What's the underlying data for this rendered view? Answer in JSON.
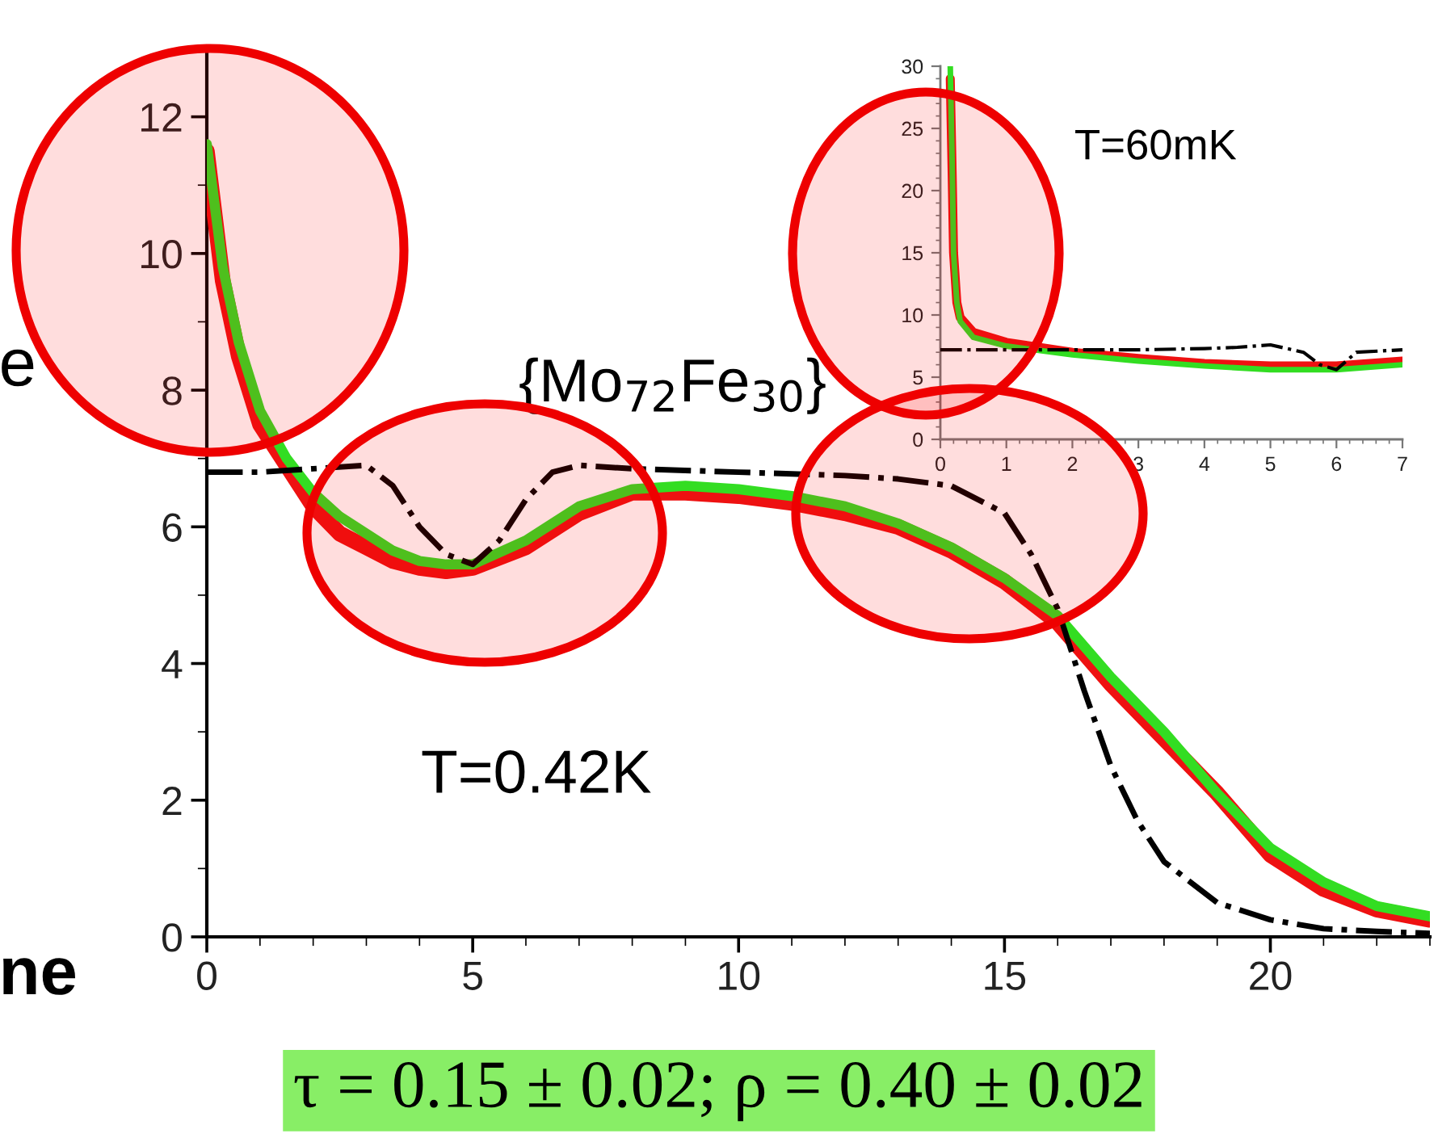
{
  "chart_data": [
    {
      "type": "line",
      "xlim": [
        0,
        23
      ],
      "ylim": [
        0,
        13
      ],
      "xticks": [
        0,
        5,
        10,
        15,
        20
      ],
      "yticks": [
        0,
        2,
        4,
        6,
        8,
        10,
        12
      ],
      "grid": false,
      "legend": false,
      "marker": "none",
      "annotations": [
        "{Mo$_{72}$Fe$_{30}$}",
        "T=0.42K",
        "τ = 0.15 ± 0.02; ρ = 0.40 ± 0.02",
        "e",
        "ne"
      ],
      "series": [
        {
          "color": "#ee1111",
          "line_style": "solid",
          "x": [
            0,
            0.3,
            0.6,
            1,
            1.5,
            2,
            2.5,
            3,
            3.5,
            4,
            4.5,
            5,
            6,
            7,
            8,
            9,
            10,
            11,
            12,
            13,
            14,
            15,
            16,
            17,
            18,
            19,
            20,
            21,
            22,
            23
          ],
          "values": [
            11.5,
            9.6,
            8.5,
            7.5,
            6.9,
            6.3,
            5.9,
            5.7,
            5.5,
            5.4,
            5.35,
            5.4,
            5.7,
            6.2,
            6.5,
            6.5,
            6.45,
            6.35,
            6.2,
            6.0,
            5.65,
            5.2,
            4.6,
            3.7,
            2.9,
            2.1,
            1.2,
            0.7,
            0.4,
            0.25
          ]
        },
        {
          "color": "#33dd22",
          "line_style": "solid",
          "x": [
            0,
            0.3,
            0.6,
            1,
            1.5,
            2,
            2.5,
            3,
            3.5,
            4,
            4.5,
            5,
            6,
            7,
            8,
            9,
            10,
            11,
            12,
            13,
            14,
            15,
            16,
            17,
            18,
            19,
            20,
            21,
            22,
            23
          ],
          "values": [
            11.6,
            9.8,
            8.7,
            7.7,
            7.0,
            6.5,
            6.15,
            5.9,
            5.65,
            5.5,
            5.45,
            5.45,
            5.8,
            6.3,
            6.55,
            6.6,
            6.55,
            6.45,
            6.3,
            6.05,
            5.7,
            5.25,
            4.7,
            3.8,
            3.0,
            2.1,
            1.3,
            0.8,
            0.45,
            0.3
          ]
        },
        {
          "color": "#000000",
          "line_style": "dashdot",
          "x": [
            0,
            1,
            2,
            3,
            3.5,
            4,
            4.5,
            5,
            5.5,
            6,
            6.5,
            7,
            8,
            10,
            12,
            13,
            14,
            15,
            15.5,
            16,
            16.5,
            17,
            17.5,
            18,
            19,
            20,
            21,
            22,
            23
          ],
          "values": [
            6.8,
            6.8,
            6.85,
            6.9,
            6.6,
            6.0,
            5.6,
            5.45,
            5.8,
            6.4,
            6.8,
            6.9,
            6.85,
            6.8,
            6.75,
            6.7,
            6.6,
            6.2,
            5.6,
            4.8,
            3.6,
            2.5,
            1.7,
            1.1,
            0.5,
            0.25,
            0.12,
            0.08,
            0.05
          ]
        }
      ]
    },
    {
      "type": "line",
      "xlim": [
        0,
        7
      ],
      "ylim": [
        0,
        30
      ],
      "xticks": [
        0,
        1,
        2,
        3,
        4,
        5,
        6,
        7
      ],
      "yticks": [
        0,
        5,
        10,
        15,
        20,
        25,
        30
      ],
      "grid": false,
      "legend": false,
      "marker": "none",
      "annotations": [
        "T=60mK"
      ],
      "series": [
        {
          "color": "#ee1111",
          "line_style": "solid",
          "x": [
            0.15,
            0.18,
            0.2,
            0.25,
            0.3,
            0.5,
            1,
            2,
            3,
            4,
            5,
            6,
            7
          ],
          "values": [
            29,
            21,
            15,
            11,
            9.8,
            8.6,
            7.8,
            7.0,
            6.5,
            6.1,
            5.9,
            5.9,
            6.3
          ]
        },
        {
          "color": "#33dd22",
          "line_style": "solid",
          "x": [
            0.15,
            0.18,
            0.2,
            0.25,
            0.3,
            0.5,
            1,
            2,
            3,
            4,
            5,
            6,
            7
          ],
          "values": [
            30,
            22,
            15,
            11,
            9.5,
            8.2,
            7.5,
            6.8,
            6.3,
            5.9,
            5.6,
            5.6,
            6.0
          ]
        },
        {
          "color": "#000000",
          "line_style": "dashdot",
          "x": [
            0,
            1,
            2,
            3,
            4,
            4.5,
            5,
            5.5,
            5.75,
            6,
            6.3,
            7
          ],
          "values": [
            7.2,
            7.2,
            7.2,
            7.2,
            7.3,
            7.4,
            7.6,
            7.0,
            6.0,
            5.6,
            7.0,
            7.2
          ]
        }
      ]
    }
  ]
}
